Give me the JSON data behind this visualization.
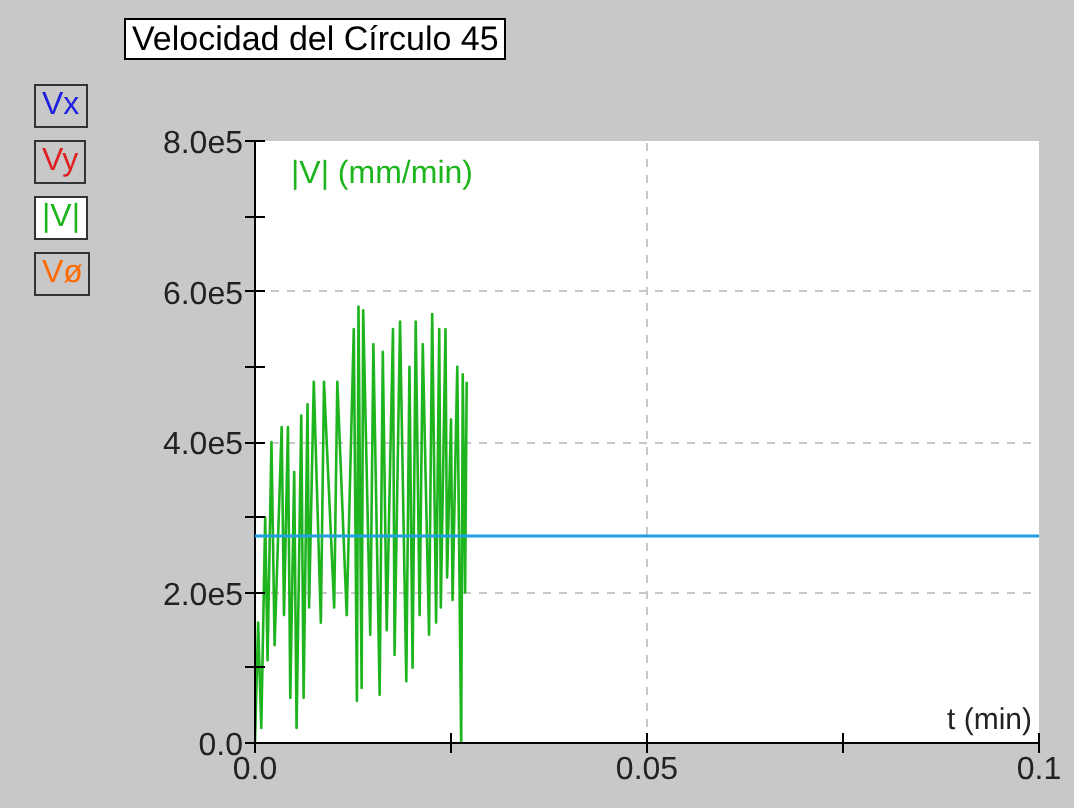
{
  "chart_data": {
    "type": "line",
    "title": "Velocidad del Círculo 45",
    "ylabel": "|V| (mm/min)",
    "xlabel": "t (min)",
    "annotations": [
      "Vx",
      "Vy",
      "Vø"
    ],
    "xlim": [
      0,
      0.1
    ],
    "ylim": [
      0,
      800000
    ],
    "xticks": [
      {
        "value": 0,
        "label": "0.0"
      },
      {
        "value": 0.025,
        "label": null
      },
      0.05,
      {
        "value": 0.075,
        "label": null
      },
      0.1
    ],
    "yticks": [
      {
        "value": 0,
        "label": "0.0"
      },
      {
        "value": 100000,
        "label": null
      },
      {
        "value": 200000,
        "label": "2.0e5"
      },
      {
        "value": 300000,
        "label": null
      },
      {
        "value": 400000,
        "label": "4.0e5"
      },
      {
        "value": 500000,
        "label": null
      },
      {
        "value": 600000,
        "label": "6.0e5"
      },
      {
        "value": 700000,
        "label": null
      },
      {
        "value": 800000,
        "label": "8.0e5"
      }
    ],
    "grid": true,
    "marker": "none",
    "line_style": "solid",
    "ref_lines": [
      {
        "axis": "y",
        "value": 275000,
        "color": "#1ea0e0"
      }
    ],
    "series": [
      {
        "name": "|V|",
        "color": "#1eb41e",
        "x": [
          0.0,
          0.0004,
          0.0008,
          0.0013,
          0.0016,
          0.0021,
          0.0025,
          0.0034,
          0.0037,
          0.0042,
          0.0045,
          0.005,
          0.0053,
          0.0059,
          0.0062,
          0.0067,
          0.0069,
          0.0075,
          0.0084,
          0.0088,
          0.0101,
          0.0105,
          0.0117,
          0.0126,
          0.013,
          0.0132,
          0.0136,
          0.0138,
          0.0147,
          0.0151,
          0.0159,
          0.0163,
          0.0168,
          0.0176,
          0.0178,
          0.0185,
          0.0193,
          0.0197,
          0.0201,
          0.0205,
          0.021,
          0.0214,
          0.0222,
          0.0226,
          0.0231,
          0.0235,
          0.0237,
          0.0243,
          0.0245,
          0.025,
          0.0252,
          0.0258,
          0.0263,
          0.0265,
          0.0268,
          0.027
        ],
        "values": [
          0,
          160000,
          20000,
          300000,
          110000,
          400000,
          130000,
          420000,
          170000,
          420000,
          60000,
          360000,
          20000,
          435000,
          60000,
          450000,
          180000,
          480000,
          160000,
          480000,
          180000,
          480000,
          170000,
          550000,
          56000,
          580000,
          73000,
          575000,
          144000,
          530000,
          64000,
          520000,
          150000,
          550000,
          117000,
          560000,
          82000,
          500000,
          100000,
          560000,
          170000,
          530000,
          144000,
          570000,
          160000,
          550000,
          180000,
          550000,
          220000,
          430000,
          190000,
          500000,
          0,
          490000,
          200000,
          480000
        ]
      }
    ]
  }
}
